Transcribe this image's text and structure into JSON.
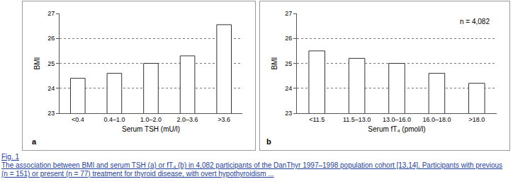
{
  "chart_data": [
    {
      "type": "bar",
      "panel": "a",
      "x_label": "Serum TSH (mU/l)",
      "y_label": "BMI",
      "categories": [
        "<0.4",
        "0.4–1.0",
        "1.0–2.0",
        "2.0–3.6",
        ">3.6"
      ],
      "values": [
        24.4,
        24.6,
        25.0,
        25.3,
        26.55
      ],
      "color": "#ffffff",
      "ylim": [
        23,
        27
      ],
      "yticks": [
        23,
        24,
        25,
        26,
        27
      ],
      "grid": true
    },
    {
      "type": "bar",
      "panel": "b",
      "x_label": "Serum fT₄ (pmol/l)",
      "y_label": "BMI",
      "annotations": [
        "n = 4,082"
      ],
      "categories": [
        "<11.5",
        "11.5–13.0",
        "13.0–16.0",
        "16.0–18.0",
        ">18.0"
      ],
      "values": [
        25.5,
        25.2,
        25.0,
        24.6,
        24.2
      ],
      "color": "#ffffff",
      "ylim": [
        23,
        27
      ],
      "yticks": [
        23,
        24,
        25,
        26,
        27
      ],
      "grid": true
    }
  ],
  "caption": {
    "link": "Fig. 1",
    "text": "The association between BMI and serum TSH (a) or fT₄ (b) in 4,082 participants of the DanThyr 1997–1998 population cohort [13,14]. Participants with previous (n = 151) or present (n = 77) treatment for thyroid disease, with overt hypothyroidism ..."
  }
}
